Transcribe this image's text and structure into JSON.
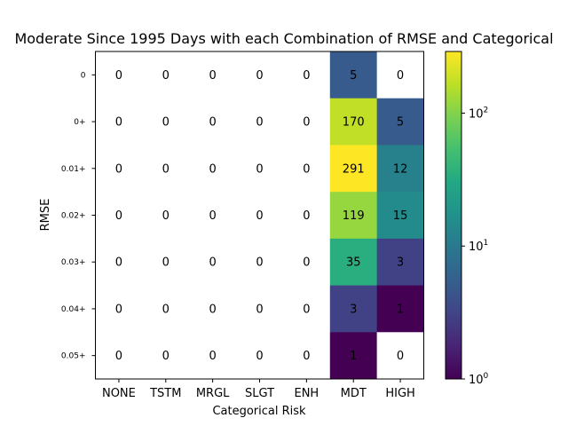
{
  "chart_data": {
    "type": "heatmap",
    "title": "Moderate Since 1995 Days with each Combination of RMSE and Categorical",
    "xlabel": "Categorical Risk",
    "ylabel": "RMSE",
    "x_categories": [
      "NONE",
      "TSTM",
      "MRGL",
      "SLGT",
      "ENH",
      "MDT",
      "HIGH"
    ],
    "y_categories": [
      "0",
      "0+",
      "0.01+",
      "0.02+",
      "0.03+",
      "0.04+",
      "0.05+"
    ],
    "values": [
      [
        0,
        0,
        0,
        0,
        0,
        5,
        0
      ],
      [
        0,
        0,
        0,
        0,
        0,
        170,
        5
      ],
      [
        0,
        0,
        0,
        0,
        0,
        291,
        12
      ],
      [
        0,
        0,
        0,
        0,
        0,
        119,
        15
      ],
      [
        0,
        0,
        0,
        0,
        0,
        35,
        3
      ],
      [
        0,
        0,
        0,
        0,
        0,
        3,
        1
      ],
      [
        0,
        0,
        0,
        0,
        0,
        1,
        0
      ]
    ],
    "colormap": "viridis",
    "color_scale": "log",
    "color_range": [
      1,
      291
    ],
    "colorbar_ticks": [
      {
        "value": 1,
        "base": "10",
        "exp": "0"
      },
      {
        "value": 10,
        "base": "10",
        "exp": "1"
      },
      {
        "value": 100,
        "base": "10",
        "exp": "2"
      }
    ],
    "zero_cell_color": "#ffffff",
    "legend": "colorbar-right"
  }
}
